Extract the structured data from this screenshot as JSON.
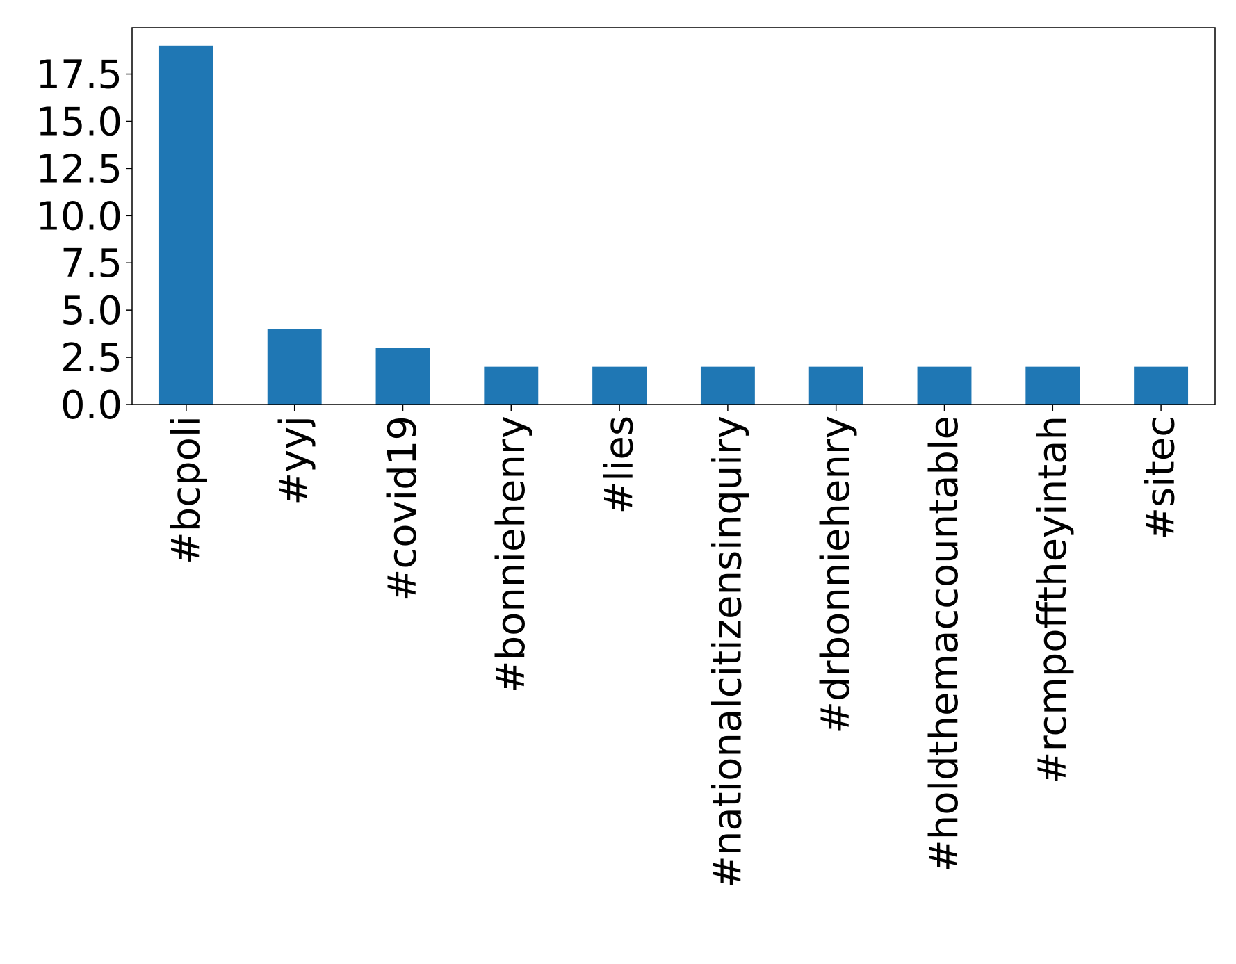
{
  "chart_data": {
    "type": "bar",
    "title": "",
    "xlabel": "",
    "ylabel": "",
    "categories": [
      "#bcpoli",
      "#yyj",
      "#covid19",
      "#bonniehenry",
      "#lies",
      "#nationalcitizensinquiry",
      "#drbonniehenry",
      "#holdthemaccountable",
      "#rcmpofftheyintah",
      "#sitec"
    ],
    "values": [
      19,
      4,
      3,
      2,
      2,
      2,
      2,
      2,
      2,
      2
    ],
    "ylim": [
      0,
      19.95
    ],
    "yticks": [
      0.0,
      2.5,
      5.0,
      7.5,
      10.0,
      12.5,
      15.0,
      17.5
    ],
    "ytick_labels": [
      "0.0",
      "2.5",
      "5.0",
      "7.5",
      "10.0",
      "12.5",
      "15.0",
      "17.5"
    ],
    "bar_color": "#1f77b4",
    "grid": false,
    "legend": "none",
    "xtick_rotation": "vertical"
  }
}
